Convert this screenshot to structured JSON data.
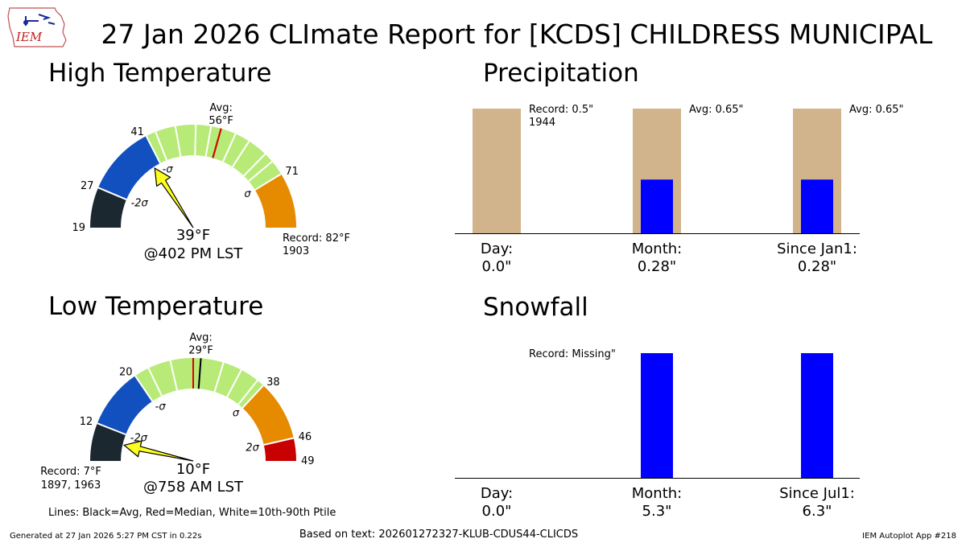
{
  "header": {
    "title": "27 Jan 2026 CLImate Report for [KCDS] CHILDRESS MUNICIPAL",
    "logo_text": "IEM"
  },
  "footer": {
    "generated": "Generated at 27 Jan 2026 5:27 PM CST in 0.22s",
    "based_on": "Based on text: 202601272327-KLUB-CDUS44-CLICDS",
    "app": "IEM Autoplot App #218",
    "legend_note": "Lines: Black=Avg, Red=Median, White=10th-90th Ptile"
  },
  "colors": {
    "below_minus2sigma": "#1c2830",
    "minus2_to_minus1": "#1250c0",
    "within_sigma": "#b8ea78",
    "plus1_to_plus2": "#e68a00",
    "above_plus2sigma": "#c80000",
    "pointer": "#ffff1e",
    "avg_bar": "#d2b48c",
    "obs_bar": "#0000ff"
  },
  "chart_data": [
    {
      "type": "gauge",
      "title": "High Temperature",
      "units": "°F",
      "range": [
        19,
        82
      ],
      "avg": 56,
      "avg_label": "Avg:",
      "avg_value_label": "56°F",
      "median": 56,
      "observed": 39,
      "observed_label": "39°F",
      "time_label": "@402 PM LST",
      "record_label": "Record: 82°F",
      "record_years": "1903",
      "percentile_lines": [
        43,
        47,
        51,
        54,
        59,
        62,
        66,
        68
      ],
      "segments": [
        {
          "from": 19,
          "to": 27,
          "color": "below_minus2sigma"
        },
        {
          "from": 27,
          "to": 41,
          "color": "minus2_to_minus1"
        },
        {
          "from": 41,
          "to": 71,
          "color": "within_sigma"
        },
        {
          "from": 71,
          "to": 82,
          "color": "plus1_to_plus2"
        }
      ],
      "ticks": [
        {
          "value": 19,
          "label": "19"
        },
        {
          "value": 27,
          "label": "27"
        },
        {
          "value": 41,
          "label": "41"
        },
        {
          "value": 71,
          "label": "71"
        }
      ],
      "sigma_labels": [
        {
          "value": 27,
          "label": "-2σ"
        },
        {
          "value": 41,
          "label": "-σ"
        },
        {
          "value": 71,
          "label": "σ"
        }
      ]
    },
    {
      "type": "gauge",
      "title": "Low Temperature",
      "units": "°F",
      "range": [
        7,
        49
      ],
      "avg": 29,
      "avg_label": "Avg:",
      "avg_value_label": "29°F",
      "median": 28,
      "observed": 10,
      "observed_label": "10°F",
      "time_label": "@758 AM LST",
      "record_label": "Record: 7°F",
      "record_years": "1897, 1963",
      "percentile_lines": [
        22,
        25,
        32,
        34.5,
        37
      ],
      "segments": [
        {
          "from": 7,
          "to": 12,
          "color": "below_minus2sigma"
        },
        {
          "from": 12,
          "to": 20,
          "color": "minus2_to_minus1"
        },
        {
          "from": 20,
          "to": 38,
          "color": "within_sigma"
        },
        {
          "from": 38,
          "to": 46,
          "color": "plus1_to_plus2"
        },
        {
          "from": 46,
          "to": 49,
          "color": "above_plus2sigma"
        }
      ],
      "ticks": [
        {
          "value": 12,
          "label": "12"
        },
        {
          "value": 20,
          "label": "20"
        },
        {
          "value": 38,
          "label": "38"
        },
        {
          "value": 46,
          "label": "46"
        },
        {
          "value": 49,
          "label": "49"
        }
      ],
      "sigma_labels": [
        {
          "value": 12,
          "label": "-2σ"
        },
        {
          "value": 20,
          "label": "-σ"
        },
        {
          "value": 38,
          "label": "σ"
        },
        {
          "value": 46,
          "label": "2σ"
        }
      ]
    },
    {
      "type": "bar",
      "title": "Precipitation",
      "categories": [
        "Day:",
        "Month:",
        "Since Jan1:"
      ],
      "observed_labels": [
        "0.0\"",
        "0.28\"",
        "0.28\""
      ],
      "reference_labels": [
        "Record: 0.5\"",
        "Avg: 0.65\"",
        "Avg: 0.65\""
      ],
      "reference_sublabels": [
        "1944",
        "",
        ""
      ],
      "series": [
        {
          "key": "reference",
          "values": [
            0.5,
            0.65,
            0.65
          ],
          "color": "avg_bar"
        },
        {
          "key": "observed",
          "values": [
            0.0,
            0.28,
            0.28
          ],
          "color": "obs_bar"
        }
      ],
      "normalize": true
    },
    {
      "type": "bar",
      "title": "Snowfall",
      "categories": [
        "Day:",
        "Month:",
        "Since Jul1:"
      ],
      "observed_labels": [
        "0.0\"",
        "5.3\"",
        "6.3\""
      ],
      "reference_labels": [
        "Record: Missing\"",
        "",
        ""
      ],
      "reference_sublabels": [
        "",
        "",
        ""
      ],
      "series": [
        {
          "key": "reference",
          "values": [
            null,
            null,
            null
          ],
          "color": "avg_bar"
        },
        {
          "key": "observed",
          "values": [
            0.0,
            5.3,
            6.3
          ],
          "color": "obs_bar"
        }
      ],
      "normalize": true
    }
  ]
}
